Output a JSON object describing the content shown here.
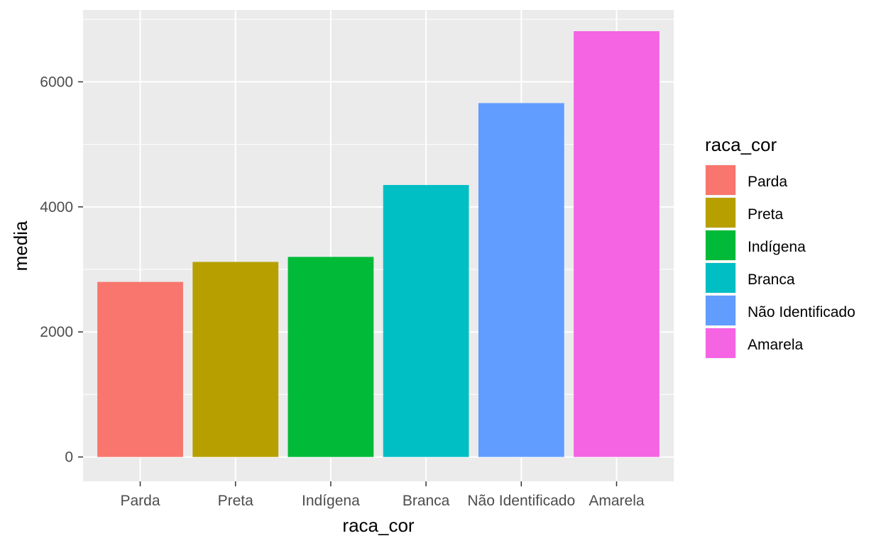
{
  "chart_data": {
    "type": "bar",
    "categories": [
      "Parda",
      "Preta",
      "Indígena",
      "Branca",
      "Não Identificado",
      "Amarela"
    ],
    "values": [
      2800,
      3120,
      3200,
      4350,
      5660,
      6810
    ],
    "colors": [
      "#F8766D",
      "#B79F00",
      "#00BA38",
      "#00BFC4",
      "#619CFF",
      "#F564E3"
    ],
    "xlabel": "raca_cor",
    "ylabel": "media",
    "ylim": [
      -390,
      7150
    ],
    "yticks": [
      0,
      2000,
      4000,
      6000
    ],
    "ytick_labels": [
      "0",
      "2000",
      "4000",
      "6000"
    ],
    "panel_background": "#EBEBEB",
    "grid_color": "#FFFFFF",
    "grid": true,
    "legend": {
      "title": "raca_cor",
      "placement": "right",
      "entries": [
        "Parda",
        "Preta",
        "Indígena",
        "Branca",
        "Não Identificado",
        "Amarela"
      ]
    }
  }
}
